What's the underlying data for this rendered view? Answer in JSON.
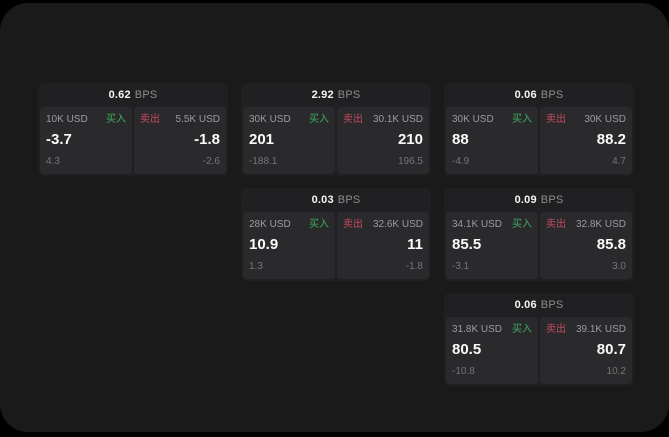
{
  "colors": {
    "outer_background": "#000000",
    "panel_background": "#1a1a1b",
    "card_background": "#202022",
    "tile_background": "#2a2a2c",
    "buy_accent": "#3fae5f",
    "sell_accent": "#c44a5f"
  },
  "labels": {
    "buy": "买入",
    "sell": "卖出",
    "bps_unit": "BPS"
  },
  "cards": [
    {
      "bps": "0.62",
      "buy": {
        "size": "10K USD",
        "price": "-3.7",
        "delta": "4.3"
      },
      "sell": {
        "size": "5.5K USD",
        "price": "-1.8",
        "delta": "-2.6"
      }
    },
    {
      "bps": "2.92",
      "buy": {
        "size": "30K USD",
        "price": "201",
        "delta": "-188.1"
      },
      "sell": {
        "size": "30.1K USD",
        "price": "210",
        "delta": "196.5"
      }
    },
    {
      "bps": "0.06",
      "buy": {
        "size": "30K USD",
        "price": "88",
        "delta": "-4.9"
      },
      "sell": {
        "size": "30K USD",
        "price": "88.2",
        "delta": "4.7"
      }
    },
    {
      "bps": "0.03",
      "buy": {
        "size": "28K USD",
        "price": "10.9",
        "delta": "1.3"
      },
      "sell": {
        "size": "32.6K USD",
        "price": "11",
        "delta": "-1.8"
      }
    },
    {
      "bps": "0.09",
      "buy": {
        "size": "34.1K USD",
        "price": "85.5",
        "delta": "-3.1"
      },
      "sell": {
        "size": "32.8K USD",
        "price": "85.8",
        "delta": "3.0"
      }
    },
    {
      "bps": "0.06",
      "buy": {
        "size": "31.8K USD",
        "price": "80.5",
        "delta": "-10.8"
      },
      "sell": {
        "size": "39.1K USD",
        "price": "80.7",
        "delta": "10.2"
      }
    }
  ]
}
